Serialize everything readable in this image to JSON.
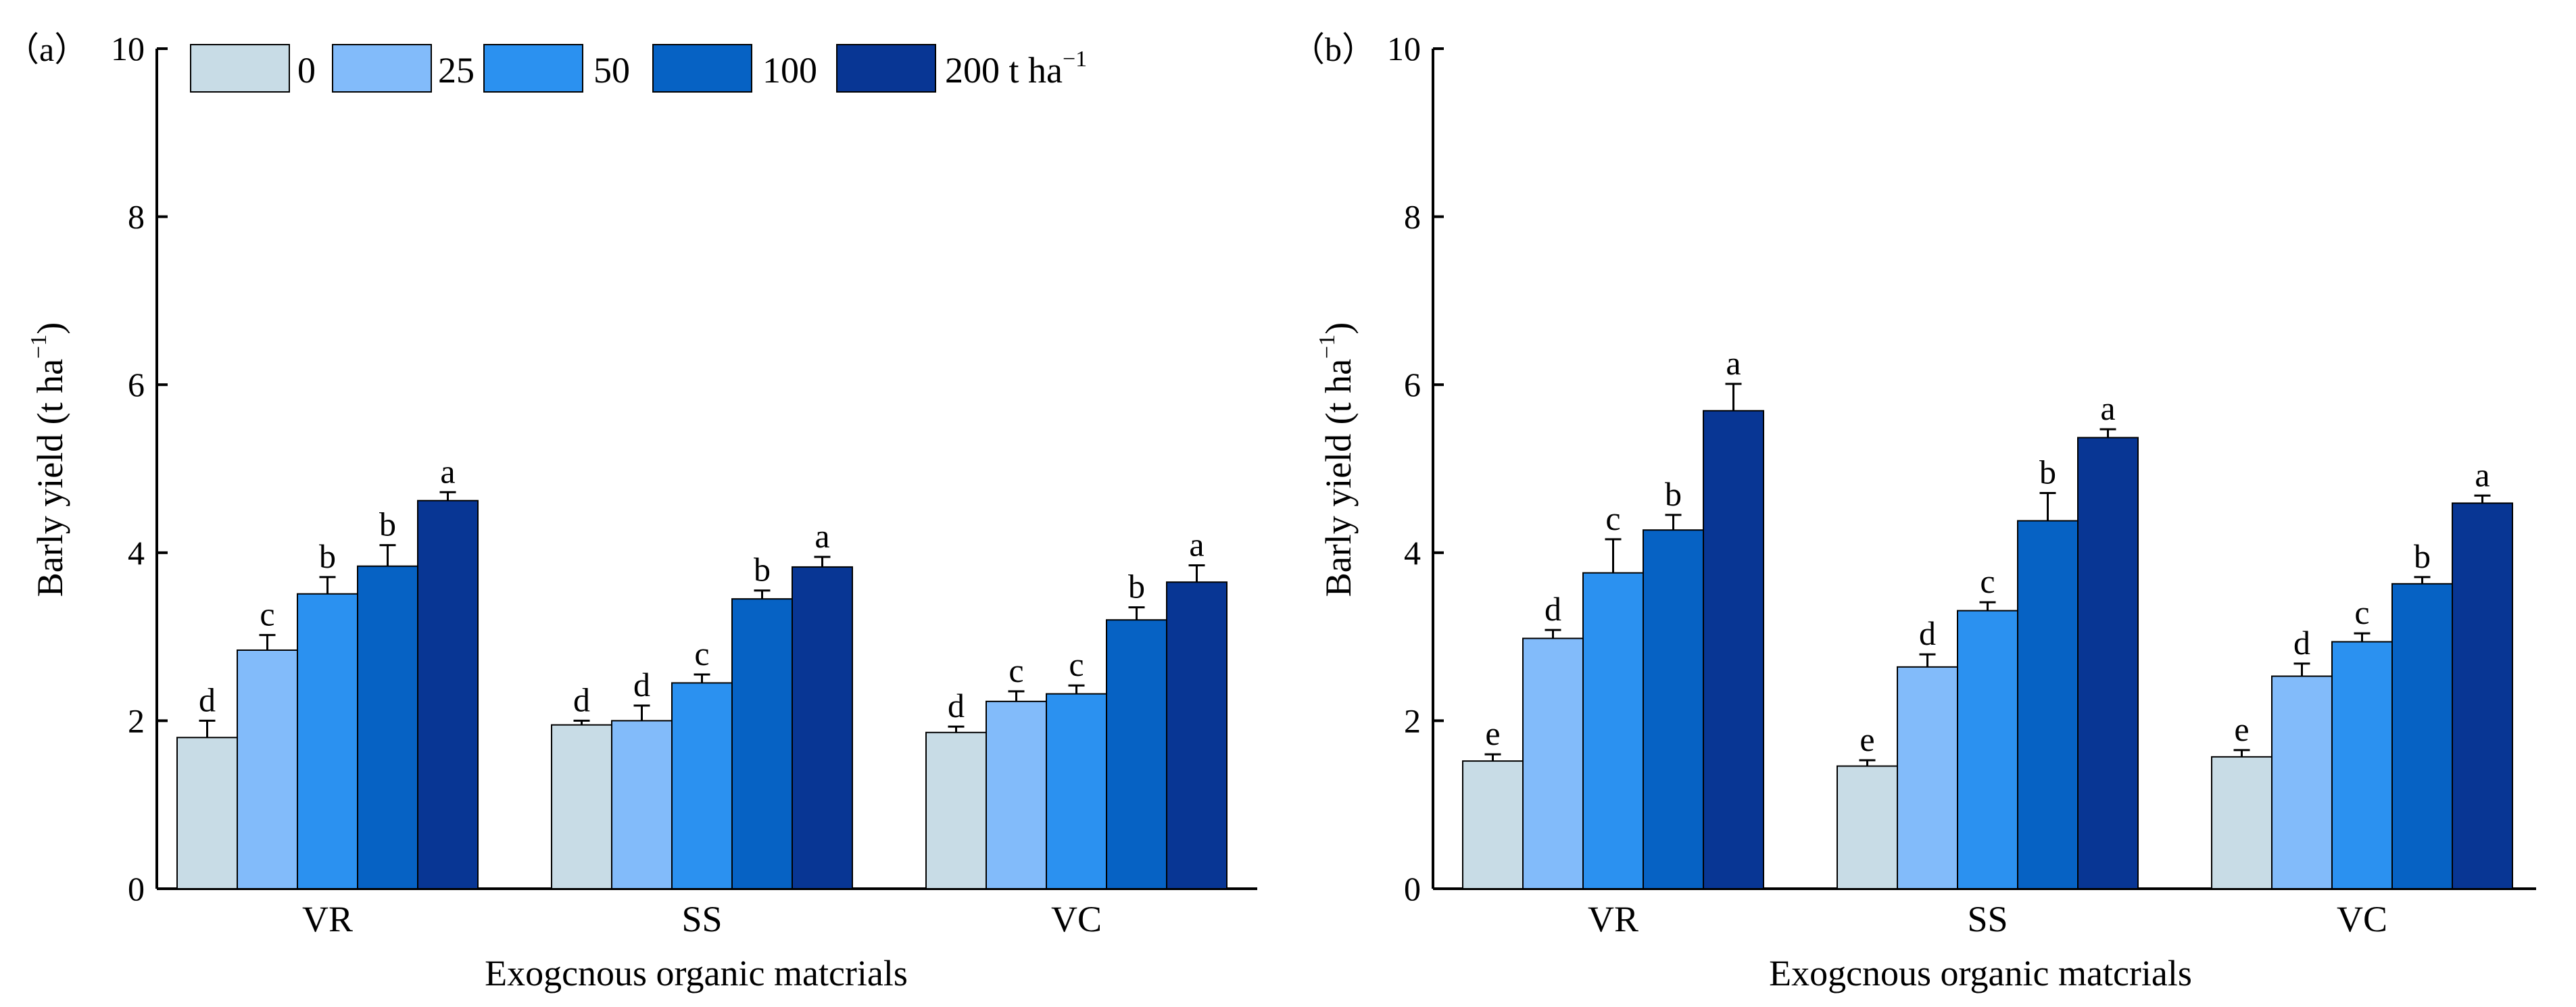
{
  "chart_data": [
    {
      "type": "bar",
      "panel_label": "（a）",
      "ylabel": "Barly yield (t ha",
      "ylabel_sup": "−1",
      "ylabel_close": ")",
      "xlabel": "Exogcnous organic matcrials",
      "ylim": [
        0,
        10
      ],
      "yticks": [
        "0",
        "2",
        "4",
        "6",
        "8",
        "10"
      ],
      "categories": [
        "VR",
        "SS",
        "VC"
      ],
      "legend": {
        "placement": "top-left"
      },
      "series": [
        {
          "name": "0",
          "values": [
            1.8,
            1.95,
            1.86
          ],
          "errors": [
            0.2,
            0.05,
            0.07
          ],
          "letters": [
            "d",
            "d",
            "d"
          ]
        },
        {
          "name": "25",
          "values": [
            2.84,
            2.0,
            2.23
          ],
          "errors": [
            0.18,
            0.18,
            0.12
          ],
          "letters": [
            "c",
            "d",
            "c"
          ]
        },
        {
          "name": "50",
          "values": [
            3.51,
            2.45,
            2.32
          ],
          "errors": [
            0.2,
            0.1,
            0.1
          ],
          "letters": [
            "b",
            "c",
            "c"
          ]
        },
        {
          "name": "100",
          "values": [
            3.84,
            3.45,
            3.2
          ],
          "errors": [
            0.25,
            0.1,
            0.15
          ],
          "letters": [
            "b",
            "b",
            "b"
          ]
        },
        {
          "name": "200 t ha",
          "name_sup": "−1",
          "values": [
            4.62,
            3.83,
            3.65
          ],
          "errors": [
            0.1,
            0.12,
            0.2
          ],
          "letters": [
            "a",
            "a",
            "a"
          ]
        }
      ]
    },
    {
      "type": "bar",
      "panel_label": "（b）",
      "ylabel": "Barly yield (t ha",
      "ylabel_sup": "−1",
      "ylabel_close": ")",
      "xlabel": "Exogcnous organic matcrials",
      "ylim": [
        0,
        10
      ],
      "yticks": [
        "0",
        "2",
        "4",
        "6",
        "8",
        "10"
      ],
      "categories": [
        "VR",
        "SS",
        "VC"
      ],
      "series": [
        {
          "name": "0",
          "values": [
            1.52,
            1.46,
            1.57
          ],
          "errors": [
            0.08,
            0.07,
            0.08
          ],
          "letters": [
            "e",
            "e",
            "e"
          ]
        },
        {
          "name": "25",
          "values": [
            2.98,
            2.64,
            2.53
          ],
          "errors": [
            0.1,
            0.15,
            0.15
          ],
          "letters": [
            "d",
            "d",
            "d"
          ]
        },
        {
          "name": "50",
          "values": [
            3.76,
            3.31,
            2.94
          ],
          "errors": [
            0.4,
            0.1,
            0.1
          ],
          "letters": [
            "c",
            "c",
            "c"
          ]
        },
        {
          "name": "100",
          "values": [
            4.27,
            4.38,
            3.63
          ],
          "errors": [
            0.18,
            0.33,
            0.08
          ],
          "letters": [
            "b",
            "b",
            "b"
          ]
        },
        {
          "name": "200 t ha",
          "name_sup": "−1",
          "values": [
            5.69,
            5.37,
            4.59
          ],
          "errors": [
            0.32,
            0.1,
            0.09
          ],
          "letters": [
            "a",
            "a",
            "a"
          ]
        }
      ]
    }
  ],
  "colors": [
    "#c8dce6",
    "#82bbfa",
    "#2b91f0",
    "#0662c4",
    "#083694"
  ]
}
